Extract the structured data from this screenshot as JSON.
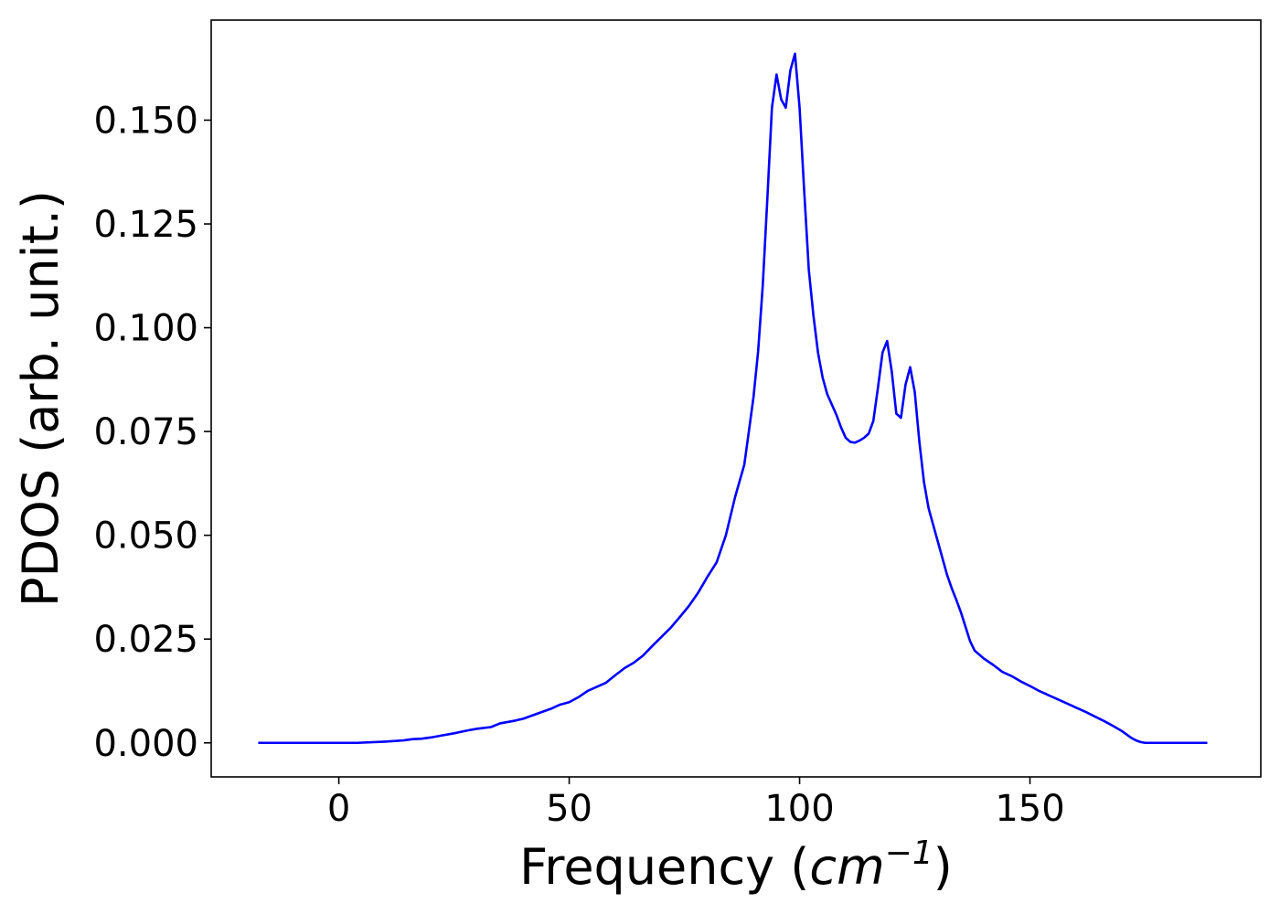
{
  "chart_data": {
    "type": "line",
    "xlabel_prefix": "Frequency (",
    "xlabel_unit": "cm",
    "xlabel_exponent": "−1",
    "xlabel_suffix": ")",
    "ylabel": "PDOS (arb. unit.)",
    "xlim": [
      -27.7,
      200.1
    ],
    "ylim": [
      -0.0082,
      0.1741
    ],
    "x_ticks": [
      {
        "value": 0,
        "label": "0"
      },
      {
        "value": 50,
        "label": "50"
      },
      {
        "value": 100,
        "label": "100"
      },
      {
        "value": 150,
        "label": "150"
      }
    ],
    "y_ticks": [
      {
        "value": 0.0,
        "label": "0.000"
      },
      {
        "value": 0.025,
        "label": "0.025"
      },
      {
        "value": 0.05,
        "label": "0.050"
      },
      {
        "value": 0.075,
        "label": "0.075"
      },
      {
        "value": 0.1,
        "label": "0.100"
      },
      {
        "value": 0.125,
        "label": "0.125"
      },
      {
        "value": 0.15,
        "label": "0.150"
      }
    ],
    "grid": false,
    "legend": "none",
    "series": [
      {
        "color": "#0000ff",
        "x": [
          -17.5,
          0,
          4,
          10,
          14,
          16,
          18,
          20,
          22,
          25,
          28,
          30,
          33,
          35,
          38,
          40,
          42,
          44,
          46,
          48,
          50,
          52,
          54,
          56,
          58,
          60,
          62,
          64,
          66,
          68,
          70,
          72,
          74,
          76,
          78,
          80,
          82,
          84,
          86,
          88,
          89,
          90,
          91,
          92,
          93,
          94,
          95,
          96,
          97,
          98,
          99,
          100,
          101,
          102,
          103,
          104,
          105,
          106,
          107,
          108,
          109,
          110,
          111,
          112,
          113,
          114,
          115,
          116,
          117,
          118,
          119,
          120,
          121,
          122,
          123,
          124,
          125,
          126,
          127,
          128,
          129,
          130,
          131,
          132,
          133,
          134,
          135,
          136,
          137,
          138,
          140,
          142,
          144,
          146,
          148,
          150,
          152,
          154,
          156,
          158,
          160,
          162,
          164,
          166,
          168,
          170,
          172,
          173,
          174,
          175,
          176,
          178,
          182,
          188.5
        ],
        "y": [
          0.0,
          0.0,
          0.0,
          0.0003,
          0.0006,
          0.0009,
          0.001,
          0.0013,
          0.0017,
          0.0023,
          0.003,
          0.0034,
          0.0038,
          0.0047,
          0.0053,
          0.0058,
          0.0066,
          0.0074,
          0.0082,
          0.0092,
          0.0098,
          0.011,
          0.0125,
          0.0135,
          0.0145,
          0.0163,
          0.018,
          0.0193,
          0.021,
          0.0233,
          0.0255,
          0.0277,
          0.0303,
          0.033,
          0.0362,
          0.04,
          0.0435,
          0.05,
          0.0592,
          0.067,
          0.0751,
          0.0833,
          0.0943,
          0.11,
          0.131,
          0.153,
          0.161,
          0.155,
          0.153,
          0.162,
          0.166,
          0.153,
          0.133,
          0.114,
          0.103,
          0.094,
          0.088,
          0.084,
          0.0815,
          0.079,
          0.076,
          0.0735,
          0.0725,
          0.0723,
          0.0728,
          0.0735,
          0.0745,
          0.0775,
          0.0855,
          0.094,
          0.0968,
          0.0895,
          0.0793,
          0.0783,
          0.0863,
          0.0905,
          0.0845,
          0.0725,
          0.0628,
          0.0565,
          0.0525,
          0.0485,
          0.0445,
          0.0405,
          0.0373,
          0.0345,
          0.0315,
          0.028,
          0.0245,
          0.0222,
          0.0203,
          0.0188,
          0.0171,
          0.0161,
          0.0148,
          0.0137,
          0.0125,
          0.0115,
          0.0105,
          0.0095,
          0.0085,
          0.0075,
          0.0064,
          0.0053,
          0.0041,
          0.0028,
          0.0012,
          0.0006,
          0.0002,
          0.0,
          0.0,
          0.0,
          0.0,
          0.0
        ]
      }
    ]
  }
}
